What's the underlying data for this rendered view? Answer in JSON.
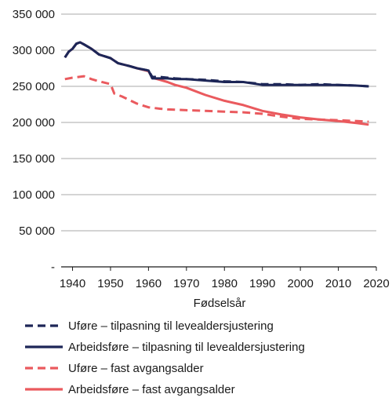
{
  "chart_data": {
    "type": "line",
    "xlabel": "Fødselsår",
    "ylabel": "",
    "xlim": [
      1937,
      2020
    ],
    "ylim": [
      0,
      350000
    ],
    "x_ticks": [
      1940,
      1950,
      1960,
      1970,
      1980,
      1990,
      2000,
      2010,
      2020
    ],
    "y_ticks": [
      {
        "value": 0,
        "label": "-"
      },
      {
        "value": 50000,
        "label": "50 000"
      },
      {
        "value": 100000,
        "label": "100 000"
      },
      {
        "value": 150000,
        "label": "150 000"
      },
      {
        "value": 200000,
        "label": "200 000"
      },
      {
        "value": 250000,
        "label": "250 000"
      },
      {
        "value": 300000,
        "label": "300 000"
      },
      {
        "value": 350000,
        "label": "350 000"
      }
    ],
    "grid": "horizontal",
    "legend_position": "bottom",
    "series": [
      {
        "name": "Uføre – tilpasning til levealdersjustering",
        "color": "#1d2657",
        "dashed": true,
        "points": [
          [
            1938,
            290000
          ],
          [
            1939,
            298000
          ],
          [
            1940,
            302000
          ],
          [
            1941,
            309000
          ],
          [
            1942,
            311000
          ],
          [
            1943,
            308000
          ],
          [
            1945,
            302000
          ],
          [
            1947,
            294000
          ],
          [
            1950,
            289000
          ],
          [
            1952,
            282000
          ],
          [
            1955,
            278000
          ],
          [
            1957,
            275000
          ],
          [
            1960,
            272000
          ],
          [
            1961,
            263000
          ],
          [
            1963,
            263000
          ],
          [
            1965,
            262000
          ],
          [
            1967,
            261000
          ],
          [
            1970,
            260000
          ],
          [
            1975,
            259000
          ],
          [
            1980,
            257000
          ],
          [
            1985,
            256000
          ],
          [
            1990,
            253000
          ],
          [
            1995,
            253000
          ],
          [
            2000,
            252000
          ],
          [
            2005,
            253000
          ],
          [
            2010,
            252000
          ],
          [
            2015,
            251000
          ],
          [
            2018,
            250000
          ]
        ]
      },
      {
        "name": "Arbeidsføre – tilpasning til levealdersjustering",
        "color": "#1d2657",
        "dashed": false,
        "points": [
          [
            1938,
            290000
          ],
          [
            1939,
            298000
          ],
          [
            1940,
            302000
          ],
          [
            1941,
            309000
          ],
          [
            1942,
            311000
          ],
          [
            1943,
            308000
          ],
          [
            1945,
            302000
          ],
          [
            1947,
            294000
          ],
          [
            1950,
            289000
          ],
          [
            1952,
            282000
          ],
          [
            1955,
            278000
          ],
          [
            1957,
            275000
          ],
          [
            1960,
            272000
          ],
          [
            1961,
            261000
          ],
          [
            1963,
            261000
          ],
          [
            1965,
            261000
          ],
          [
            1967,
            260000
          ],
          [
            1970,
            260000
          ],
          [
            1975,
            258000
          ],
          [
            1980,
            256000
          ],
          [
            1985,
            256000
          ],
          [
            1990,
            252000
          ],
          [
            1995,
            252000
          ],
          [
            2000,
            252000
          ],
          [
            2005,
            252000
          ],
          [
            2010,
            252000
          ],
          [
            2015,
            251000
          ],
          [
            2018,
            250000
          ]
        ]
      },
      {
        "name": "Uføre – fast avgangsalder",
        "color": "#ea5a5e",
        "dashed": true,
        "points": [
          [
            1938,
            260000
          ],
          [
            1940,
            262000
          ],
          [
            1943,
            264000
          ],
          [
            1945,
            260000
          ],
          [
            1947,
            257000
          ],
          [
            1950,
            253000
          ],
          [
            1951,
            240000
          ],
          [
            1953,
            236000
          ],
          [
            1955,
            231000
          ],
          [
            1957,
            226000
          ],
          [
            1960,
            221000
          ],
          [
            1963,
            219000
          ],
          [
            1965,
            218000
          ],
          [
            1970,
            217000
          ],
          [
            1975,
            216000
          ],
          [
            1980,
            215000
          ],
          [
            1985,
            214000
          ],
          [
            1990,
            212000
          ],
          [
            1995,
            208000
          ],
          [
            2000,
            205000
          ],
          [
            2005,
            204000
          ],
          [
            2010,
            203000
          ],
          [
            2015,
            202000
          ],
          [
            2018,
            201000
          ]
        ]
      },
      {
        "name": "Arbeidsføre – fast avgangsalder",
        "color": "#ea5a5e",
        "dashed": false,
        "points": [
          [
            1938,
            290000
          ],
          [
            1939,
            298000
          ],
          [
            1940,
            302000
          ],
          [
            1941,
            309000
          ],
          [
            1942,
            311000
          ],
          [
            1943,
            308000
          ],
          [
            1945,
            302000
          ],
          [
            1947,
            294000
          ],
          [
            1950,
            289000
          ],
          [
            1952,
            282000
          ],
          [
            1955,
            278000
          ],
          [
            1957,
            275000
          ],
          [
            1960,
            271000
          ],
          [
            1961,
            262000
          ],
          [
            1963,
            259000
          ],
          [
            1965,
            256000
          ],
          [
            1967,
            252000
          ],
          [
            1970,
            248000
          ],
          [
            1975,
            238000
          ],
          [
            1980,
            230000
          ],
          [
            1985,
            224000
          ],
          [
            1990,
            216000
          ],
          [
            1995,
            211000
          ],
          [
            2000,
            207000
          ],
          [
            2005,
            204000
          ],
          [
            2010,
            202000
          ],
          [
            2015,
            199000
          ],
          [
            2018,
            197000
          ]
        ]
      }
    ]
  }
}
